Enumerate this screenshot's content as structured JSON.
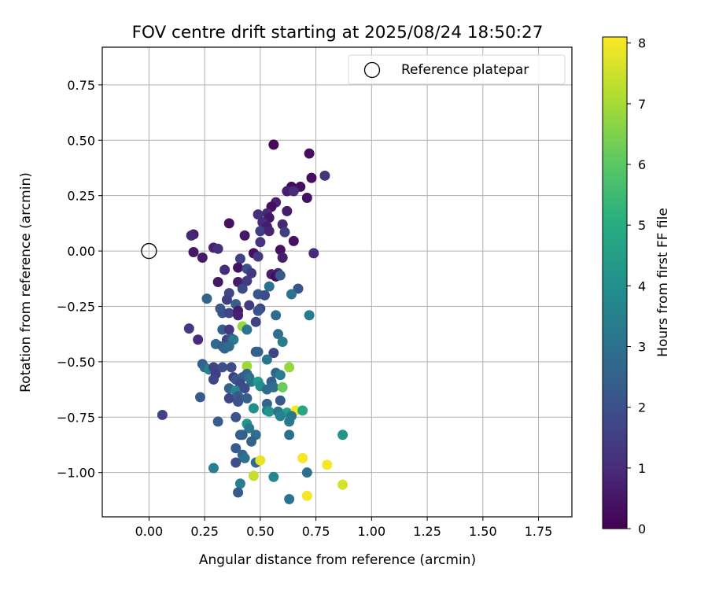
{
  "chart_data": {
    "type": "scatter",
    "title": "FOV centre drift starting at 2025/08/24 18:50:27",
    "xlabel": "Angular distance from reference (arcmin)",
    "ylabel": "Rotation from reference (arcmin)",
    "xlim": [
      -0.21,
      1.9
    ],
    "ylim": [
      -1.2,
      0.92
    ],
    "x_ticks": [
      "0.00",
      "0.25",
      "0.50",
      "0.75",
      "1.00",
      "1.25",
      "1.50",
      "1.75"
    ],
    "y_ticks": [
      "0.75",
      "0.50",
      "0.25",
      "0.00",
      "−0.25",
      "−0.50",
      "−0.75",
      "−1.00"
    ],
    "grid": true,
    "legend": {
      "placement": "top-right",
      "entries": [
        "Reference platepar"
      ]
    },
    "reference_point": {
      "x": 0.0,
      "y": 0.0
    },
    "colorbar": {
      "label": "Hours from first FF file",
      "range": [
        0,
        8.1
      ],
      "ticks": [
        "0",
        "1",
        "2",
        "3",
        "4",
        "5",
        "6",
        "7",
        "8"
      ],
      "colormap": "viridis"
    },
    "points": [
      {
        "x": 0.56,
        "y": 0.48,
        "h": 0.2
      },
      {
        "x": 0.72,
        "y": 0.44,
        "h": 0.3
      },
      {
        "x": 0.79,
        "y": 0.34,
        "h": 1.2
      },
      {
        "x": 0.73,
        "y": 0.33,
        "h": 0.3
      },
      {
        "x": 0.64,
        "y": 0.29,
        "h": 0.2
      },
      {
        "x": 0.68,
        "y": 0.29,
        "h": 0.3
      },
      {
        "x": 0.62,
        "y": 0.27,
        "h": 0.7
      },
      {
        "x": 0.65,
        "y": 0.27,
        "h": 1.0
      },
      {
        "x": 0.71,
        "y": 0.24,
        "h": 0.4
      },
      {
        "x": 0.57,
        "y": 0.22,
        "h": 0.8
      },
      {
        "x": 0.55,
        "y": 0.2,
        "h": 0.3
      },
      {
        "x": 0.53,
        "y": 0.17,
        "h": 0.9
      },
      {
        "x": 0.49,
        "y": 0.165,
        "h": 1.1
      },
      {
        "x": 0.62,
        "y": 0.18,
        "h": 0.6
      },
      {
        "x": 0.54,
        "y": 0.15,
        "h": 0.5
      },
      {
        "x": 0.36,
        "y": 0.125,
        "h": 0.4
      },
      {
        "x": 0.51,
        "y": 0.13,
        "h": 1.0
      },
      {
        "x": 0.6,
        "y": 0.12,
        "h": 0.9
      },
      {
        "x": 0.53,
        "y": 0.11,
        "h": 0.6
      },
      {
        "x": 0.2,
        "y": 0.075,
        "h": 0.6
      },
      {
        "x": 0.19,
        "y": 0.07,
        "h": 0.9
      },
      {
        "x": 0.43,
        "y": 0.07,
        "h": 0.5
      },
      {
        "x": 0.5,
        "y": 0.09,
        "h": 1.5
      },
      {
        "x": 0.54,
        "y": 0.09,
        "h": 0.8
      },
      {
        "x": 0.61,
        "y": 0.085,
        "h": 1.5
      },
      {
        "x": 0.65,
        "y": 0.045,
        "h": 0.4
      },
      {
        "x": 0.5,
        "y": 0.04,
        "h": 1.2
      },
      {
        "x": 0.29,
        "y": 0.015,
        "h": 0.7
      },
      {
        "x": 0.31,
        "y": 0.01,
        "h": 1.1
      },
      {
        "x": 0.2,
        "y": -0.005,
        "h": 0.5
      },
      {
        "x": 0.24,
        "y": -0.03,
        "h": 0.6
      },
      {
        "x": 0.47,
        "y": -0.01,
        "h": 0.3
      },
      {
        "x": 0.49,
        "y": -0.025,
        "h": 1.3
      },
      {
        "x": 0.59,
        "y": 0.005,
        "h": 0.4
      },
      {
        "x": 0.6,
        "y": -0.03,
        "h": 0.7
      },
      {
        "x": 0.74,
        "y": -0.01,
        "h": 1.0
      },
      {
        "x": 0.41,
        "y": -0.035,
        "h": 1.6
      },
      {
        "x": 0.4,
        "y": -0.075,
        "h": 0.4
      },
      {
        "x": 0.34,
        "y": -0.085,
        "h": 1.0
      },
      {
        "x": 0.44,
        "y": -0.08,
        "h": 2.0
      },
      {
        "x": 0.46,
        "y": -0.1,
        "h": 1.3
      },
      {
        "x": 0.55,
        "y": -0.105,
        "h": 0.7
      },
      {
        "x": 0.58,
        "y": -0.1,
        "h": 0.9
      },
      {
        "x": 0.57,
        "y": -0.115,
        "h": 0.2
      },
      {
        "x": 0.58,
        "y": -0.11,
        "h": 0.4
      },
      {
        "x": 0.59,
        "y": -0.11,
        "h": 2.2
      },
      {
        "x": 0.31,
        "y": -0.14,
        "h": 0.5
      },
      {
        "x": 0.4,
        "y": -0.14,
        "h": 0.6
      },
      {
        "x": 0.44,
        "y": -0.135,
        "h": 1.4
      },
      {
        "x": 0.54,
        "y": -0.16,
        "h": 3.0
      },
      {
        "x": 0.67,
        "y": -0.17,
        "h": 2.1
      },
      {
        "x": 0.42,
        "y": -0.17,
        "h": 1.8
      },
      {
        "x": 0.36,
        "y": -0.19,
        "h": 1.7
      },
      {
        "x": 0.49,
        "y": -0.195,
        "h": 2.2
      },
      {
        "x": 0.52,
        "y": -0.2,
        "h": 1.9
      },
      {
        "x": 0.64,
        "y": -0.195,
        "h": 3.1
      },
      {
        "x": 0.26,
        "y": -0.215,
        "h": 2.6
      },
      {
        "x": 0.35,
        "y": -0.22,
        "h": 1.5
      },
      {
        "x": 0.39,
        "y": -0.24,
        "h": 2.4
      },
      {
        "x": 0.45,
        "y": -0.245,
        "h": 1.4
      },
      {
        "x": 0.5,
        "y": -0.26,
        "h": 1.7
      },
      {
        "x": 0.49,
        "y": -0.27,
        "h": 2.0
      },
      {
        "x": 0.32,
        "y": -0.26,
        "h": 2.2
      },
      {
        "x": 0.33,
        "y": -0.28,
        "h": 2.1
      },
      {
        "x": 0.36,
        "y": -0.28,
        "h": 1.7
      },
      {
        "x": 0.4,
        "y": -0.27,
        "h": 0.6
      },
      {
        "x": 0.4,
        "y": -0.29,
        "h": 0.7
      },
      {
        "x": 0.57,
        "y": -0.29,
        "h": 2.8
      },
      {
        "x": 0.72,
        "y": -0.29,
        "h": 3.4
      },
      {
        "x": 0.48,
        "y": -0.32,
        "h": 1.6
      },
      {
        "x": 0.42,
        "y": -0.34,
        "h": 6.8
      },
      {
        "x": 0.44,
        "y": -0.355,
        "h": 3.1
      },
      {
        "x": 0.33,
        "y": -0.355,
        "h": 2.4
      },
      {
        "x": 0.36,
        "y": -0.355,
        "h": 1.3
      },
      {
        "x": 0.18,
        "y": -0.35,
        "h": 1.4
      },
      {
        "x": 0.58,
        "y": -0.375,
        "h": 2.9
      },
      {
        "x": 0.35,
        "y": -0.4,
        "h": 1.6
      },
      {
        "x": 0.37,
        "y": -0.395,
        "h": 2.1
      },
      {
        "x": 0.38,
        "y": -0.4,
        "h": 3.3
      },
      {
        "x": 0.6,
        "y": -0.41,
        "h": 3.4
      },
      {
        "x": 0.22,
        "y": -0.4,
        "h": 1.0
      },
      {
        "x": 0.3,
        "y": -0.42,
        "h": 2.8
      },
      {
        "x": 0.33,
        "y": -0.43,
        "h": 2.4
      },
      {
        "x": 0.34,
        "y": -0.44,
        "h": 2.6
      },
      {
        "x": 0.36,
        "y": -0.43,
        "h": 2.8
      },
      {
        "x": 0.48,
        "y": -0.455,
        "h": 2.2
      },
      {
        "x": 0.49,
        "y": -0.455,
        "h": 2.5
      },
      {
        "x": 0.56,
        "y": -0.46,
        "h": 1.7
      },
      {
        "x": 0.53,
        "y": -0.49,
        "h": 3.1
      },
      {
        "x": 0.24,
        "y": -0.51,
        "h": 2.4
      },
      {
        "x": 0.25,
        "y": -0.525,
        "h": 2.8
      },
      {
        "x": 0.27,
        "y": -0.535,
        "h": 3.6
      },
      {
        "x": 0.29,
        "y": -0.525,
        "h": 1.6
      },
      {
        "x": 0.33,
        "y": -0.525,
        "h": 2.0
      },
      {
        "x": 0.37,
        "y": -0.525,
        "h": 1.9
      },
      {
        "x": 0.44,
        "y": -0.52,
        "h": 6.9
      },
      {
        "x": 0.63,
        "y": -0.525,
        "h": 6.8
      },
      {
        "x": 0.44,
        "y": -0.555,
        "h": 2.6
      },
      {
        "x": 0.42,
        "y": -0.57,
        "h": 2.3
      },
      {
        "x": 0.45,
        "y": -0.57,
        "h": 2.9
      },
      {
        "x": 0.57,
        "y": -0.55,
        "h": 2.7
      },
      {
        "x": 0.59,
        "y": -0.56,
        "h": 3.4
      },
      {
        "x": 0.3,
        "y": -0.555,
        "h": 1.5
      },
      {
        "x": 0.29,
        "y": -0.58,
        "h": 1.7
      },
      {
        "x": 0.38,
        "y": -0.57,
        "h": 1.3
      },
      {
        "x": 0.39,
        "y": -0.58,
        "h": 2.2
      },
      {
        "x": 0.41,
        "y": -0.6,
        "h": 1.8
      },
      {
        "x": 0.46,
        "y": -0.59,
        "h": 3.1
      },
      {
        "x": 0.49,
        "y": -0.59,
        "h": 4.4
      },
      {
        "x": 0.5,
        "y": -0.61,
        "h": 4.0
      },
      {
        "x": 0.55,
        "y": -0.59,
        "h": 2.4
      },
      {
        "x": 0.56,
        "y": -0.615,
        "h": 3.0
      },
      {
        "x": 0.6,
        "y": -0.615,
        "h": 6.2
      },
      {
        "x": 0.36,
        "y": -0.62,
        "h": 2.6
      },
      {
        "x": 0.39,
        "y": -0.63,
        "h": 3.7
      },
      {
        "x": 0.43,
        "y": -0.62,
        "h": 1.9
      },
      {
        "x": 0.53,
        "y": -0.625,
        "h": 2.8
      },
      {
        "x": 0.23,
        "y": -0.66,
        "h": 2.3
      },
      {
        "x": 0.36,
        "y": -0.665,
        "h": 1.7
      },
      {
        "x": 0.4,
        "y": -0.655,
        "h": 2.3
      },
      {
        "x": 0.4,
        "y": -0.68,
        "h": 2.0
      },
      {
        "x": 0.44,
        "y": -0.665,
        "h": 2.5
      },
      {
        "x": 0.53,
        "y": -0.69,
        "h": 2.6
      },
      {
        "x": 0.59,
        "y": -0.675,
        "h": 2.2
      },
      {
        "x": 0.47,
        "y": -0.71,
        "h": 4.0
      },
      {
        "x": 0.53,
        "y": -0.72,
        "h": 3.3
      },
      {
        "x": 0.54,
        "y": -0.725,
        "h": 4.2
      },
      {
        "x": 0.58,
        "y": -0.725,
        "h": 3.1
      },
      {
        "x": 0.62,
        "y": -0.73,
        "h": 4.5
      },
      {
        "x": 0.66,
        "y": -0.72,
        "h": 8.0
      },
      {
        "x": 0.69,
        "y": -0.72,
        "h": 4.8
      },
      {
        "x": 0.06,
        "y": -0.74,
        "h": 1.6
      },
      {
        "x": 0.39,
        "y": -0.75,
        "h": 2.1
      },
      {
        "x": 0.59,
        "y": -0.745,
        "h": 3.6
      },
      {
        "x": 0.64,
        "y": -0.745,
        "h": 3.1
      },
      {
        "x": 0.31,
        "y": -0.77,
        "h": 2.4
      },
      {
        "x": 0.63,
        "y": -0.77,
        "h": 3.2
      },
      {
        "x": 0.44,
        "y": -0.78,
        "h": 4.2
      },
      {
        "x": 0.45,
        "y": -0.8,
        "h": 3.2
      },
      {
        "x": 0.48,
        "y": -0.83,
        "h": 2.9
      },
      {
        "x": 0.41,
        "y": -0.83,
        "h": 2.3
      },
      {
        "x": 0.42,
        "y": -0.83,
        "h": 2.5
      },
      {
        "x": 0.46,
        "y": -0.86,
        "h": 2.6
      },
      {
        "x": 0.63,
        "y": -0.83,
        "h": 3.0
      },
      {
        "x": 0.87,
        "y": -0.83,
        "h": 4.2
      },
      {
        "x": 0.39,
        "y": -0.89,
        "h": 2.3
      },
      {
        "x": 0.42,
        "y": -0.92,
        "h": 2.6
      },
      {
        "x": 0.43,
        "y": -0.935,
        "h": 3.0
      },
      {
        "x": 0.69,
        "y": -0.935,
        "h": 8.0
      },
      {
        "x": 0.39,
        "y": -0.955,
        "h": 1.9
      },
      {
        "x": 0.48,
        "y": -0.955,
        "h": 2.8
      },
      {
        "x": 0.5,
        "y": -0.945,
        "h": 7.8
      },
      {
        "x": 0.8,
        "y": -0.965,
        "h": 8.0
      },
      {
        "x": 0.29,
        "y": -0.98,
        "h": 3.5
      },
      {
        "x": 0.71,
        "y": -1.0,
        "h": 2.9
      },
      {
        "x": 0.47,
        "y": -1.015,
        "h": 7.4
      },
      {
        "x": 0.56,
        "y": -1.02,
        "h": 3.7
      },
      {
        "x": 0.41,
        "y": -1.05,
        "h": 3.5
      },
      {
        "x": 0.87,
        "y": -1.055,
        "h": 7.6
      },
      {
        "x": 0.4,
        "y": -1.09,
        "h": 2.3
      },
      {
        "x": 0.71,
        "y": -1.105,
        "h": 8.0
      },
      {
        "x": 0.63,
        "y": -1.12,
        "h": 3.1
      }
    ]
  }
}
